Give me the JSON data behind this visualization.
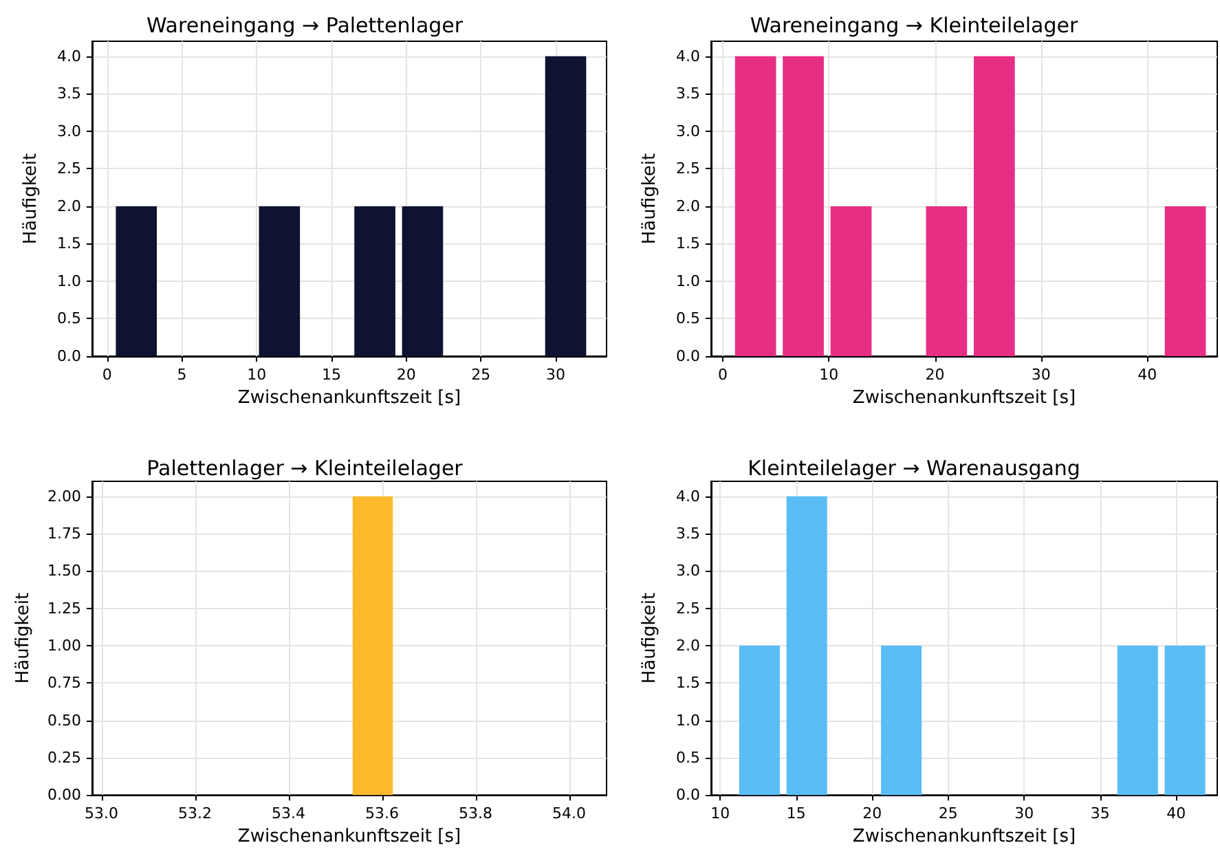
{
  "chart_data": [
    {
      "type": "histogram",
      "title": "Wareneingang → Palettenlager",
      "xlabel": "Zwischenankunftszeit [s]",
      "ylabel": "Häufigkeit",
      "color": "#0d1330",
      "grid": true,
      "bins": [
        0.36,
        3.55,
        6.74,
        9.93,
        13.12,
        16.31,
        19.5,
        22.69,
        25.88,
        29.07,
        32.26
      ],
      "values": [
        2,
        0,
        0,
        2,
        0,
        2,
        2,
        0,
        0,
        4
      ],
      "xlim": [
        -1,
        33.4
      ],
      "xticks": [
        0,
        5,
        10,
        15,
        20,
        25,
        30
      ],
      "ylim": [
        0,
        4.2
      ],
      "yticks": [
        {
          "value": 0,
          "label": "0.0"
        },
        {
          "value": 0.5,
          "label": "0.5"
        },
        {
          "value": 1,
          "label": "1.0"
        },
        {
          "value": 1.5,
          "label": "1.5"
        },
        {
          "value": 2,
          "label": "2.0"
        },
        {
          "value": 2.5,
          "label": "2.5"
        },
        {
          "value": 3,
          "label": "3.0"
        },
        {
          "value": 3.5,
          "label": "3.5"
        },
        {
          "value": 4,
          "label": "4.0"
        }
      ]
    },
    {
      "type": "histogram",
      "title": "Wareneingang → Kleinteilelager",
      "xlabel": "Zwischenankunftszeit [s]",
      "ylabel": "Häufigkeit",
      "color": "#e62e84",
      "grid": true,
      "bins": [
        0.84,
        5.34,
        9.84,
        14.34,
        18.84,
        23.34,
        27.84,
        32.34,
        36.84,
        41.34,
        45.84
      ],
      "values": [
        4,
        4,
        2,
        0,
        2,
        4,
        0,
        0,
        0,
        2
      ],
      "xlim": [
        -1.1,
        46.6
      ],
      "xticks": [
        0,
        10,
        20,
        30,
        40
      ],
      "ylim": [
        0,
        4.2
      ],
      "yticks": [
        {
          "value": 0,
          "label": "0.0"
        },
        {
          "value": 0.5,
          "label": "0.5"
        },
        {
          "value": 1,
          "label": "1.0"
        },
        {
          "value": 1.5,
          "label": "1.5"
        },
        {
          "value": 2,
          "label": "2.0"
        },
        {
          "value": 2.5,
          "label": "2.5"
        },
        {
          "value": 3,
          "label": "3.0"
        },
        {
          "value": 3.5,
          "label": "3.5"
        },
        {
          "value": 4,
          "label": "4.0"
        }
      ]
    },
    {
      "type": "histogram",
      "title": "Palettenlager → Kleinteilelager",
      "xlabel": "Zwischenankunftszeit [s]",
      "ylabel": "Häufigkeit",
      "color": "#fdba2c",
      "grid": true,
      "bins": [
        53.03,
        53.13,
        53.23,
        53.33,
        53.43,
        53.53,
        53.63,
        53.73,
        53.83,
        53.93,
        54.03
      ],
      "values": [
        0,
        0,
        0,
        0,
        0,
        2,
        0,
        0,
        0,
        0
      ],
      "xlim": [
        52.98,
        54.08
      ],
      "xticks": [
        {
          "value": 53,
          "label": "53.0"
        },
        {
          "value": 53.2,
          "label": "53.2"
        },
        {
          "value": 53.4,
          "label": "53.4"
        },
        {
          "value": 53.6,
          "label": "53.6"
        },
        {
          "value": 53.8,
          "label": "53.8"
        },
        {
          "value": 54,
          "label": "54.0"
        }
      ],
      "ylim": [
        0,
        2.1
      ],
      "yticks": [
        {
          "value": 0,
          "label": "0.00"
        },
        {
          "value": 0.25,
          "label": "0.25"
        },
        {
          "value": 0.5,
          "label": "0.50"
        },
        {
          "value": 0.75,
          "label": "0.75"
        },
        {
          "value": 1,
          "label": "1.00"
        },
        {
          "value": 1.25,
          "label": "1.25"
        },
        {
          "value": 1.5,
          "label": "1.50"
        },
        {
          "value": 1.75,
          "label": "1.75"
        },
        {
          "value": 2,
          "label": "2.00"
        }
      ]
    },
    {
      "type": "histogram",
      "title": "Kleinteilelager → Warenausgang",
      "xlabel": "Zwischenankunftszeit [s]",
      "ylabel": "Häufigkeit",
      "color": "#5bbdf5",
      "grid": true,
      "bins": [
        11.03,
        14.14,
        17.25,
        20.36,
        23.47,
        26.58,
        29.69,
        32.8,
        35.91,
        39.02,
        42.13
      ],
      "values": [
        2,
        4,
        0,
        2,
        0,
        0,
        0,
        0,
        2,
        2
      ],
      "xlim": [
        9.4,
        42.7
      ],
      "xticks": [
        10,
        15,
        20,
        25,
        30,
        35,
        40
      ],
      "ylim": [
        0,
        4.2
      ],
      "yticks": [
        {
          "value": 0,
          "label": "0.0"
        },
        {
          "value": 0.5,
          "label": "0.5"
        },
        {
          "value": 1,
          "label": "1.0"
        },
        {
          "value": 1.5,
          "label": "1.5"
        },
        {
          "value": 2,
          "label": "2.0"
        },
        {
          "value": 2.5,
          "label": "2.5"
        },
        {
          "value": 3,
          "label": "3.0"
        },
        {
          "value": 3.5,
          "label": "3.5"
        },
        {
          "value": 4,
          "label": "4.0"
        }
      ]
    }
  ]
}
